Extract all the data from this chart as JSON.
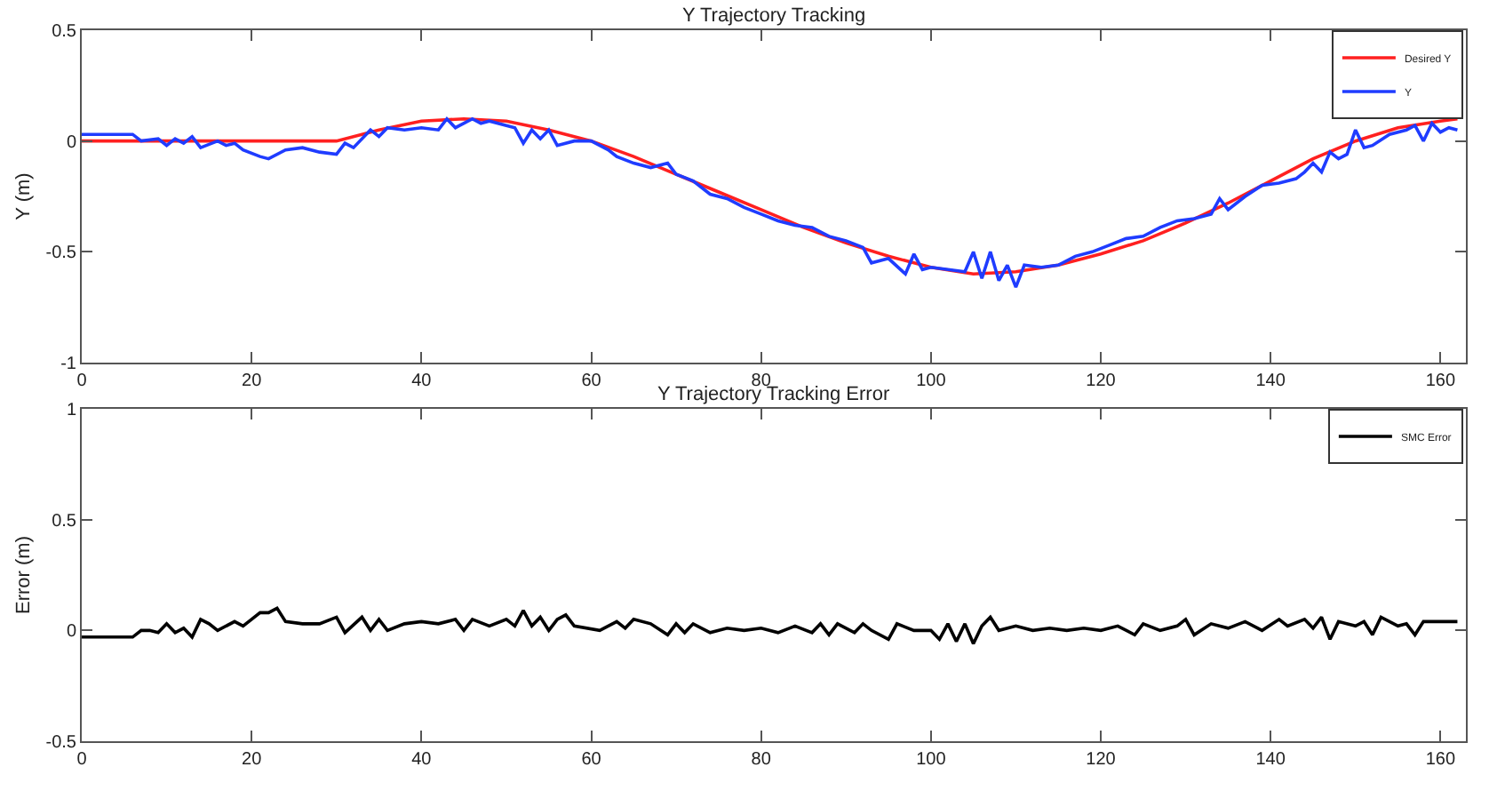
{
  "chart_data": [
    {
      "type": "line",
      "title": "Y Trajectory Tracking",
      "ylabel": "Y (m)",
      "xlim": [
        0,
        163
      ],
      "xticks": [
        0,
        20,
        40,
        60,
        80,
        100,
        120,
        140,
        160
      ],
      "ylim": [
        -1,
        0.5
      ],
      "yticks": [
        -1,
        -0.5,
        0,
        0.5
      ],
      "legend": "top right",
      "line_style": "solid",
      "marker": "none",
      "series": [
        {
          "name": "Desired Y",
          "color": "#ff2020",
          "x": [
            0,
            5,
            10,
            15,
            20,
            25,
            30,
            35,
            40,
            45,
            50,
            55,
            60,
            65,
            70,
            75,
            80,
            85,
            90,
            95,
            100,
            105,
            110,
            115,
            120,
            125,
            130,
            135,
            140,
            145,
            150,
            155,
            160,
            162
          ],
          "values": [
            0,
            0,
            0,
            0,
            0,
            0,
            0,
            0.05,
            0.09,
            0.1,
            0.09,
            0.05,
            0.0,
            -0.07,
            -0.15,
            -0.23,
            -0.31,
            -0.39,
            -0.46,
            -0.52,
            -0.57,
            -0.6,
            -0.59,
            -0.56,
            -0.51,
            -0.45,
            -0.37,
            -0.28,
            -0.18,
            -0.08,
            0.0,
            0.06,
            0.09,
            0.1
          ]
        },
        {
          "name": "Y",
          "color": "#1f3cff",
          "x": [
            0,
            6,
            7,
            9,
            10,
            11,
            12,
            13,
            14,
            16,
            17,
            18,
            19,
            21,
            22,
            24,
            26,
            28,
            30,
            31,
            32,
            34,
            35,
            36,
            38,
            40,
            42,
            43,
            44,
            46,
            47,
            48,
            50,
            51,
            52,
            53,
            54,
            55,
            56,
            58,
            60,
            62,
            63,
            65,
            67,
            69,
            70,
            72,
            74,
            76,
            78,
            80,
            82,
            84,
            86,
            88,
            90,
            92,
            93,
            95,
            97,
            98,
            99,
            100,
            102,
            104,
            105,
            106,
            107,
            108,
            109,
            110,
            111,
            113,
            115,
            117,
            119,
            121,
            123,
            125,
            127,
            129,
            131,
            133,
            134,
            135,
            137,
            139,
            141,
            143,
            144,
            145,
            146,
            147,
            148,
            149,
            150,
            151,
            152,
            154,
            156,
            157,
            158,
            159,
            160,
            161,
            162
          ],
          "values": [
            0.03,
            0.03,
            0.0,
            0.01,
            -0.02,
            0.01,
            -0.01,
            0.02,
            -0.03,
            0.0,
            -0.02,
            -0.01,
            -0.04,
            -0.07,
            -0.08,
            -0.04,
            -0.03,
            -0.05,
            -0.06,
            -0.01,
            -0.03,
            0.05,
            0.02,
            0.06,
            0.05,
            0.06,
            0.05,
            0.1,
            0.06,
            0.1,
            0.08,
            0.09,
            0.07,
            0.06,
            -0.01,
            0.05,
            0.01,
            0.05,
            -0.02,
            0.0,
            0.0,
            -0.04,
            -0.07,
            -0.1,
            -0.12,
            -0.1,
            -0.15,
            -0.18,
            -0.24,
            -0.26,
            -0.3,
            -0.33,
            -0.36,
            -0.38,
            -0.39,
            -0.43,
            -0.45,
            -0.48,
            -0.55,
            -0.53,
            -0.6,
            -0.51,
            -0.58,
            -0.57,
            -0.58,
            -0.59,
            -0.5,
            -0.62,
            -0.5,
            -0.63,
            -0.56,
            -0.66,
            -0.56,
            -0.57,
            -0.56,
            -0.52,
            -0.5,
            -0.47,
            -0.44,
            -0.43,
            -0.39,
            -0.36,
            -0.35,
            -0.33,
            -0.26,
            -0.31,
            -0.25,
            -0.2,
            -0.19,
            -0.17,
            -0.14,
            -0.1,
            -0.14,
            -0.05,
            -0.08,
            -0.06,
            0.05,
            -0.03,
            -0.02,
            0.03,
            0.05,
            0.07,
            0.0,
            0.08,
            0.04,
            0.06,
            0.05
          ]
        }
      ]
    },
    {
      "type": "line",
      "title": "Y Trajectory Tracking Error",
      "ylabel": "Error (m)",
      "xlim": [
        0,
        163
      ],
      "xticks": [
        0,
        20,
        40,
        60,
        80,
        100,
        120,
        140,
        160
      ],
      "ylim": [
        -0.5,
        1
      ],
      "yticks": [
        -0.5,
        0,
        0.5,
        1
      ],
      "legend": "top right",
      "line_style": "solid",
      "marker": "none",
      "series": [
        {
          "name": "SMC Error",
          "color": "#000000",
          "x": [
            0,
            6,
            7,
            8,
            9,
            10,
            11,
            12,
            13,
            14,
            15,
            16,
            18,
            19,
            20,
            21,
            22,
            23,
            24,
            26,
            28,
            30,
            31,
            33,
            34,
            35,
            36,
            38,
            40,
            42,
            44,
            45,
            46,
            48,
            50,
            51,
            52,
            53,
            54,
            55,
            56,
            57,
            58,
            61,
            63,
            64,
            65,
            67,
            69,
            70,
            71,
            72,
            74,
            76,
            78,
            80,
            82,
            84,
            86,
            87,
            88,
            89,
            91,
            92,
            93,
            95,
            96,
            98,
            100,
            101,
            102,
            103,
            104,
            105,
            106,
            107,
            108,
            110,
            112,
            114,
            116,
            118,
            120,
            122,
            124,
            125,
            127,
            129,
            130,
            131,
            133,
            135,
            137,
            139,
            141,
            142,
            144,
            145,
            146,
            147,
            148,
            150,
            151,
            152,
            153,
            155,
            156,
            157,
            158,
            160,
            162
          ],
          "values": [
            -0.03,
            -0.03,
            0.0,
            0.0,
            -0.01,
            0.03,
            -0.01,
            0.01,
            -0.03,
            0.05,
            0.03,
            0.0,
            0.04,
            0.02,
            0.05,
            0.08,
            0.08,
            0.1,
            0.04,
            0.03,
            0.03,
            0.06,
            -0.01,
            0.06,
            0.0,
            0.05,
            0.0,
            0.03,
            0.04,
            0.03,
            0.05,
            0.0,
            0.05,
            0.02,
            0.05,
            0.02,
            0.09,
            0.02,
            0.06,
            0.0,
            0.05,
            0.07,
            0.02,
            0.0,
            0.04,
            0.01,
            0.05,
            0.03,
            -0.02,
            0.03,
            -0.01,
            0.03,
            -0.01,
            0.01,
            0.0,
            0.01,
            -0.01,
            0.02,
            -0.01,
            0.03,
            -0.02,
            0.03,
            -0.01,
            0.03,
            0.0,
            -0.04,
            0.03,
            0.0,
            0.0,
            -0.04,
            0.03,
            -0.05,
            0.03,
            -0.06,
            0.02,
            0.06,
            0.0,
            0.02,
            0.0,
            0.01,
            0.0,
            0.01,
            0.0,
            0.02,
            -0.02,
            0.03,
            0.0,
            0.02,
            0.05,
            -0.02,
            0.03,
            0.01,
            0.04,
            0.0,
            0.05,
            0.02,
            0.05,
            0.01,
            0.06,
            -0.04,
            0.04,
            0.02,
            0.04,
            -0.02,
            0.06,
            0.02,
            0.03,
            -0.02,
            0.04,
            0.04,
            0.04
          ]
        }
      ]
    }
  ]
}
